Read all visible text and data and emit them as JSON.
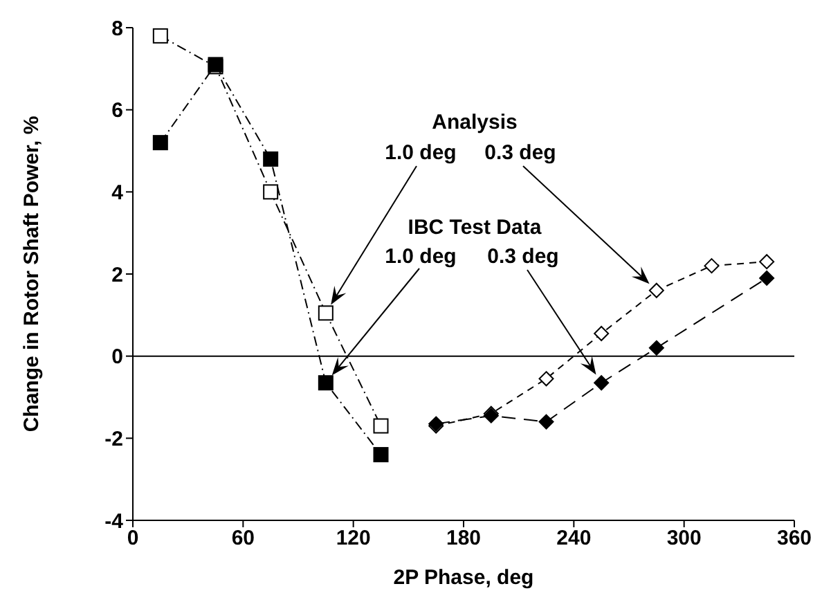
{
  "chart_data": {
    "type": "line",
    "xlabel": "2P Phase, deg",
    "ylabel": "Change in Rotor Shaft Power, %",
    "xlim": [
      0,
      360
    ],
    "xticks": [
      0,
      60,
      120,
      180,
      240,
      300,
      360
    ],
    "ylim": [
      -4,
      8
    ],
    "yticks": [
      -4,
      -2,
      0,
      2,
      4,
      6,
      8
    ],
    "ref_lines": [
      {
        "axis": "y",
        "value": 0,
        "color": "#000000",
        "line_style": "solid"
      }
    ],
    "annotations": [
      "Analysis",
      "1.0 deg",
      "0.3 deg",
      "IBC Test Data",
      "1.0 deg",
      "0.3 deg"
    ],
    "series": [
      {
        "color": "#ffffff",
        "marker": "square",
        "line_style": "dashdot",
        "x": [
          15,
          45,
          75,
          105,
          135
        ],
        "values": [
          7.8,
          7.05,
          4.0,
          1.05,
          -1.7
        ]
      },
      {
        "color": "#ffffff",
        "marker": "diamond",
        "line_style": "dashed",
        "x": [
          165,
          195,
          225,
          255,
          285,
          315,
          345
        ],
        "values": [
          -1.7,
          -1.4,
          -0.55,
          0.55,
          1.6,
          2.2,
          2.3
        ]
      },
      {
        "color": "#000000",
        "marker": "square",
        "line_style": "dashdot",
        "x": [
          15,
          45,
          75,
          105,
          135
        ],
        "values": [
          5.2,
          7.1,
          4.8,
          -0.65,
          -2.4
        ]
      },
      {
        "color": "#000000",
        "marker": "diamond",
        "line_style": "longdash",
        "x": [
          165,
          195,
          225,
          255,
          285,
          345
        ],
        "values": [
          -1.65,
          -1.45,
          -1.6,
          -0.65,
          0.2,
          1.9
        ]
      }
    ]
  }
}
